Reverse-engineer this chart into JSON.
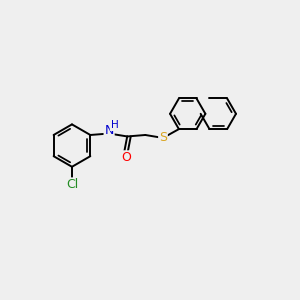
{
  "background_color": "#efefef",
  "bond_color": "#000000",
  "bond_width": 1.4,
  "atom_labels": {
    "Cl": {
      "color": "#228B22"
    },
    "O": {
      "color": "#FF0000"
    },
    "N": {
      "color": "#0000CD"
    },
    "S": {
      "color": "#DAA520"
    }
  },
  "figsize": [
    3.0,
    3.0
  ],
  "dpi": 100
}
